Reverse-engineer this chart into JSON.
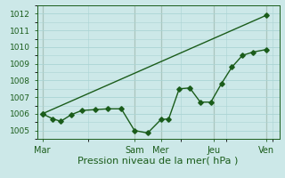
{
  "xlabel": "Pression niveau de la mer( hPa )",
  "bg_color": "#cce8e8",
  "grid_color": "#aad4d4",
  "line_color": "#1a5c1a",
  "vline_color": "#996633",
  "ylim": [
    1004.5,
    1012.5
  ],
  "yticks": [
    1005,
    1006,
    1007,
    1008,
    1009,
    1010,
    1011,
    1012
  ],
  "day_labels": [
    "Mar",
    "Sam",
    "Mer",
    "Jeu",
    "Ven"
  ],
  "day_x": [
    0,
    3.5,
    4.5,
    6.5,
    8.5
  ],
  "xlim": [
    -0.2,
    9.0
  ],
  "trend_x": [
    0,
    8.5
  ],
  "trend_y": [
    1006.0,
    1011.9
  ],
  "detail_x": [
    0,
    0.4,
    0.7,
    1.1,
    1.5,
    2.0,
    2.5,
    3.0,
    3.5,
    4.0,
    4.5,
    4.8,
    5.2,
    5.6,
    6.0,
    6.4,
    6.8,
    7.2,
    7.6,
    8.0,
    8.5
  ],
  "detail_y": [
    1006.0,
    1005.7,
    1005.55,
    1005.95,
    1006.2,
    1006.25,
    1006.3,
    1006.3,
    1005.0,
    1004.85,
    1005.65,
    1005.7,
    1007.5,
    1007.55,
    1006.7,
    1006.7,
    1007.8,
    1008.8,
    1009.5,
    1009.7,
    1009.85
  ],
  "ms": 2.8,
  "lw": 1.0,
  "font_xlabel": 8,
  "font_ytick": 6.5,
  "font_xtick": 7
}
